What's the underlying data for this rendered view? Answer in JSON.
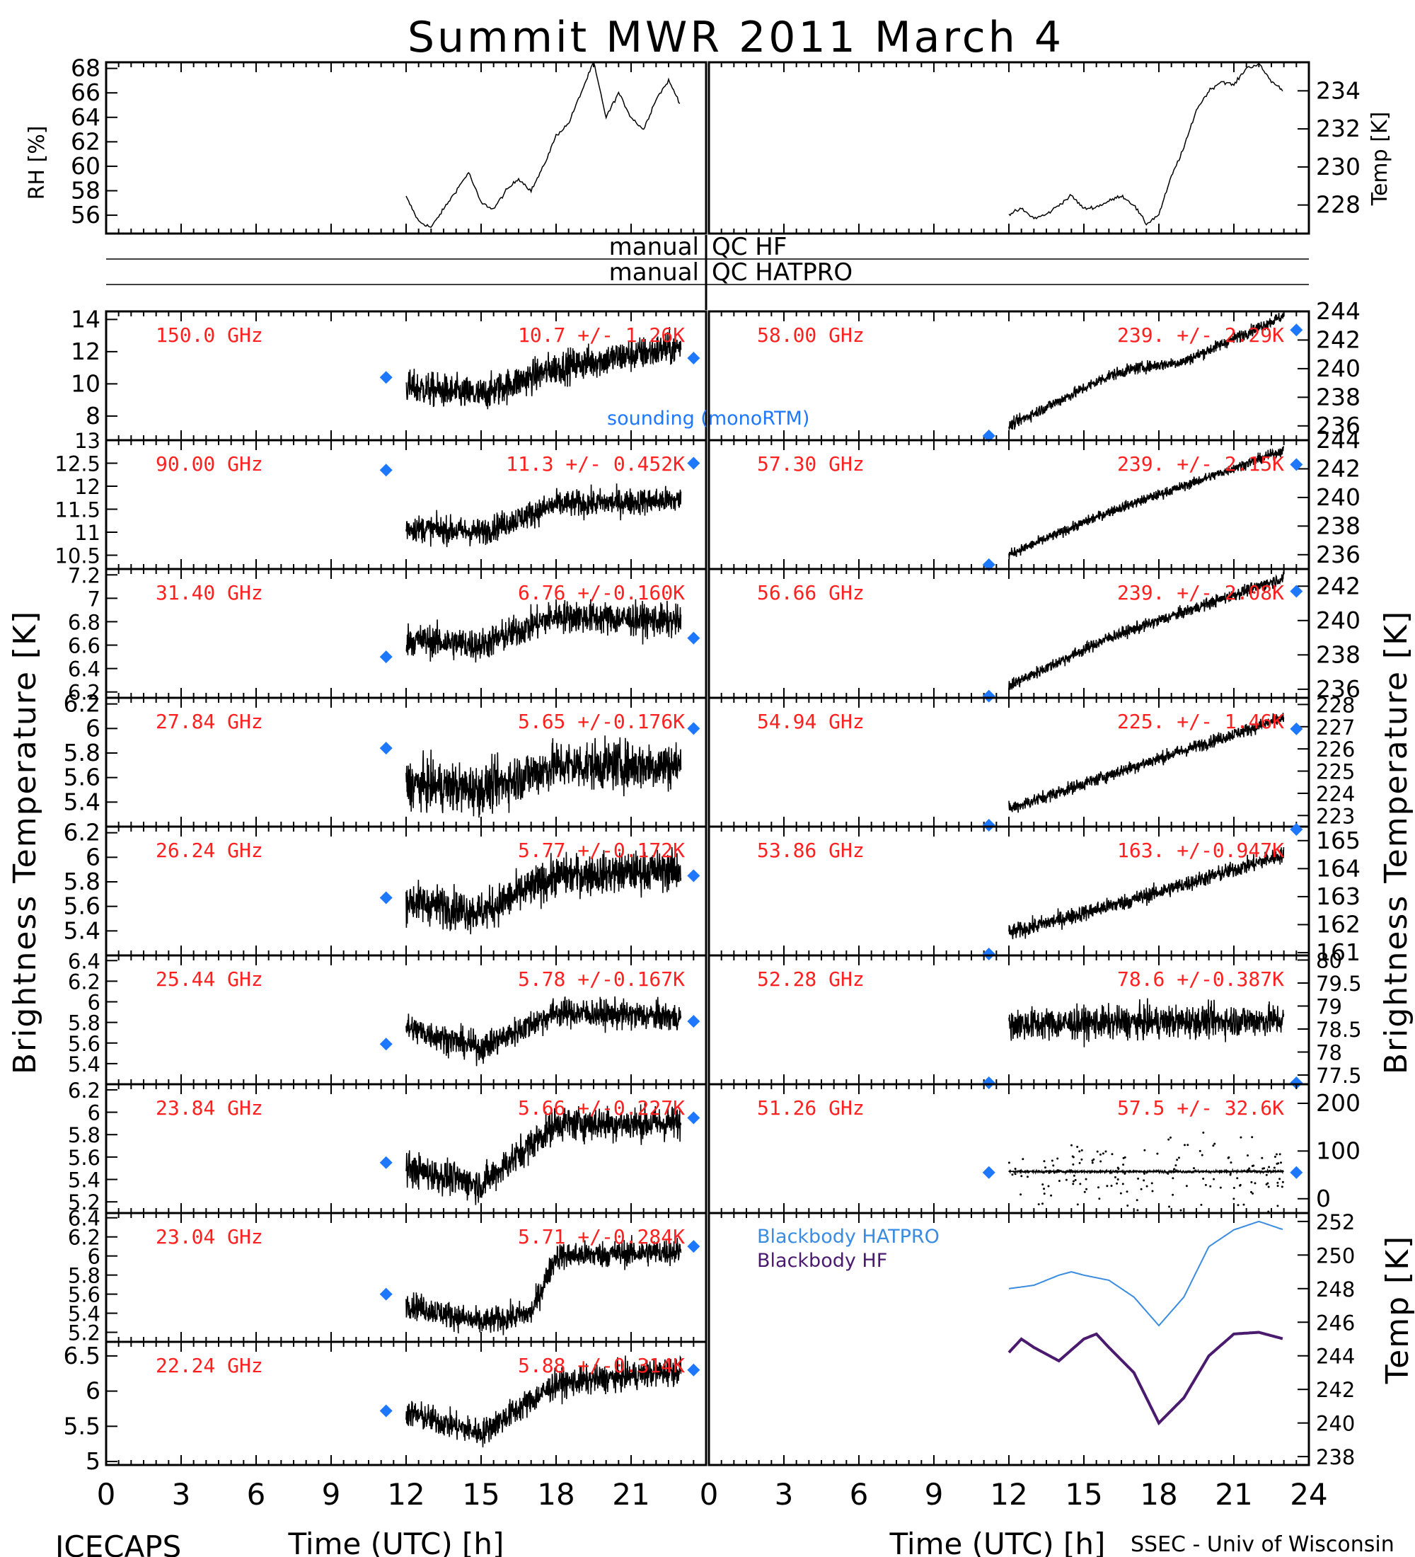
{
  "title": "Summit MWR 2011 March  4",
  "footer": {
    "left": "ICECAPS",
    "right": "SSEC - Univ of Wisconsin"
  },
  "axis": {
    "xlabel": "Time (UTC) [h]",
    "xticks": [
      0,
      3,
      6,
      9,
      12,
      15,
      18,
      21,
      24
    ],
    "xlim": [
      0,
      24
    ]
  },
  "labels": {
    "rh": "RH [%]",
    "temp_top": "Temp [K]",
    "bt_left": "Brightness Temperature [K]",
    "bt_right": "Brightness Temperature [K]",
    "temp_bottom": "Temp [K]"
  },
  "qc": {
    "left1": "manual",
    "right1": "QC HF",
    "left2": "manual",
    "right2": "QC HATPRO"
  },
  "legend": {
    "sounding": "sounding (monoRTM)",
    "bb_hatpro": "Blackbody HATPRO",
    "bb_hf": "Blackbody HF"
  },
  "colors": {
    "stats": "#ff2020",
    "sounding": "#1e78ff",
    "bb_hatpro": "#3a8ce0",
    "bb_hf": "#4a1a6e"
  },
  "chart_data": [
    {
      "type": "line",
      "panel": "rh",
      "ylabel": "RH [%]",
      "ylim": [
        54.5,
        68.5
      ],
      "yticks": [
        56,
        58,
        60,
        62,
        64,
        66,
        68
      ],
      "series": [
        {
          "x": [
            12,
            12.5,
            13,
            13.5,
            14,
            14.5,
            15,
            15.5,
            16,
            16.5,
            17,
            17.5,
            18,
            18.5,
            19,
            19.5,
            20,
            20.5,
            21,
            21.5,
            22,
            22.5,
            23
          ],
          "values": [
            57.5,
            55.5,
            55,
            56.5,
            58,
            59.5,
            57,
            56.5,
            58,
            59,
            58,
            60,
            62.5,
            63.5,
            66,
            68.5,
            64,
            66,
            64,
            63,
            65.5,
            67,
            65
          ]
        }
      ]
    },
    {
      "type": "line",
      "panel": "temp_top",
      "ylabel": "Temp [K]",
      "ylim": [
        226.5,
        235.5
      ],
      "yticks": [
        228,
        230,
        232,
        234
      ],
      "series": [
        {
          "x": [
            12,
            12.5,
            13,
            13.5,
            14,
            14.5,
            15,
            15.5,
            16,
            16.5,
            17,
            17.5,
            18,
            18.5,
            19,
            19.5,
            20,
            20.5,
            21,
            21.5,
            22,
            22.5,
            23
          ],
          "values": [
            227.5,
            227.8,
            227.3,
            227.5,
            228,
            228.5,
            227.8,
            227.9,
            228.2,
            228.5,
            228,
            227,
            227.5,
            229.5,
            231,
            233,
            234,
            234.5,
            234.3,
            235.2,
            235.4,
            234.5,
            234
          ]
        }
      ]
    },
    {
      "type": "scatter",
      "panel": "150.0 GHz",
      "freq": "150.0 GHz",
      "stats": "10.7 +/- 1.26K",
      "ylim": [
        6.5,
        14.5
      ],
      "yticks": [
        8,
        10,
        12,
        14
      ],
      "sounding": [
        {
          "x": 11.2,
          "y": 10.4
        },
        {
          "x": 23.5,
          "y": 11.6
        }
      ],
      "trend": {
        "x": [
          12,
          15,
          18,
          23
        ],
        "values": [
          9.8,
          9.3,
          11,
          12.3
        ]
      },
      "noise": 0.9
    },
    {
      "type": "scatter",
      "panel": "58.00 GHz",
      "freq": "58.00 GHz",
      "stats": "239. +/- 2.29K",
      "ylim": [
        235,
        244
      ],
      "yticks": [
        236,
        238,
        240,
        242,
        244
      ],
      "sounding": [
        {
          "x": 11.2,
          "y": 235.3
        },
        {
          "x": 23.5,
          "y": 242.7
        }
      ],
      "trend": {
        "x": [
          12,
          16,
          17,
          19,
          23
        ],
        "values": [
          236,
          239.5,
          240,
          240.5,
          243.7
        ]
      },
      "noise": 0.35
    },
    {
      "type": "scatter",
      "panel": "90.00 GHz",
      "freq": "90.00 GHz",
      "stats": "11.3 +/- 0.452K",
      "ylim": [
        10.2,
        13.0
      ],
      "yticks": [
        10.5,
        11.0,
        11.5,
        12.0,
        12.5,
        13.0
      ],
      "sounding": [
        {
          "x": 11.2,
          "y": 12.35
        },
        {
          "x": 23.5,
          "y": 12.5
        }
      ],
      "trend": {
        "x": [
          12,
          15,
          18,
          23
        ],
        "values": [
          11.1,
          11.0,
          11.6,
          11.7
        ]
      },
      "noise": 0.25
    },
    {
      "type": "scatter",
      "panel": "57.30 GHz",
      "freq": "57.30 GHz",
      "stats": "239. +/- 2.15K",
      "ylim": [
        235,
        244
      ],
      "yticks": [
        236,
        238,
        240,
        242,
        244
      ],
      "sounding": [
        {
          "x": 11.2,
          "y": 235.3
        },
        {
          "x": 23.5,
          "y": 242.3
        }
      ],
      "trend": {
        "x": [
          12,
          16,
          19,
          23
        ],
        "values": [
          236,
          239,
          240.8,
          243.3
        ]
      },
      "noise": 0.3
    },
    {
      "type": "scatter",
      "panel": "31.40 GHz",
      "freq": "31.40 GHz",
      "stats": "6.76 +/-0.160K",
      "ylim": [
        6.15,
        7.25
      ],
      "yticks": [
        6.2,
        6.4,
        6.6,
        6.8,
        7.0,
        7.2
      ],
      "sounding": [
        {
          "x": 11.2,
          "y": 6.5
        },
        {
          "x": 23.5,
          "y": 6.66
        }
      ],
      "trend": {
        "x": [
          12,
          15,
          18,
          23
        ],
        "values": [
          6.65,
          6.6,
          6.85,
          6.8
        ]
      },
      "noise": 0.12
    },
    {
      "type": "scatter",
      "panel": "56.66 GHz",
      "freq": "56.66 GHz",
      "stats": "239. +/- 2.08K",
      "ylim": [
        235.5,
        243
      ],
      "yticks": [
        236,
        238,
        240,
        242
      ],
      "sounding": [
        {
          "x": 11.2,
          "y": 235.6
        },
        {
          "x": 23.5,
          "y": 241.7
        }
      ],
      "trend": {
        "x": [
          12,
          16,
          19,
          23
        ],
        "values": [
          236.2,
          239,
          240.5,
          242.5
        ]
      },
      "noise": 0.3
    },
    {
      "type": "scatter",
      "panel": "27.84 GHz",
      "freq": "27.84 GHz",
      "stats": "5.65 +/-0.176K",
      "ylim": [
        5.2,
        6.25
      ],
      "yticks": [
        5.4,
        5.6,
        5.8,
        6.0,
        6.2
      ],
      "sounding": [
        {
          "x": 11.2,
          "y": 5.84
        },
        {
          "x": 23.5,
          "y": 6.0
        }
      ],
      "trend": {
        "x": [
          12,
          15,
          18,
          23
        ],
        "values": [
          5.55,
          5.5,
          5.7,
          5.7
        ]
      },
      "noise": 0.17
    },
    {
      "type": "scatter",
      "panel": "54.94 GHz",
      "freq": "54.94 GHz",
      "stats": "225. +/- 1.46K",
      "ylim": [
        222.5,
        228.3
      ],
      "yticks": [
        223,
        224,
        225,
        226,
        227,
        228
      ],
      "sounding": [
        {
          "x": 11.2,
          "y": 222.3
        },
        {
          "x": 23.5,
          "y": 226.9
        }
      ],
      "trend": {
        "x": [
          12,
          17,
          23
        ],
        "values": [
          223.3,
          225.2,
          227.4
        ]
      },
      "noise": 0.25
    },
    {
      "type": "scatter",
      "panel": "26.24 GHz",
      "freq": "26.24 GHz",
      "stats": "5.77 +/-0.172K",
      "ylim": [
        5.2,
        6.25
      ],
      "yticks": [
        5.4,
        5.6,
        5.8,
        6.0,
        6.2
      ],
      "sounding": [
        {
          "x": 11.2,
          "y": 5.67
        },
        {
          "x": 23.5,
          "y": 5.85
        }
      ],
      "trend": {
        "x": [
          12,
          15,
          18,
          23
        ],
        "values": [
          5.65,
          5.55,
          5.85,
          5.9
        ]
      },
      "noise": 0.14
    },
    {
      "type": "scatter",
      "panel": "53.86 GHz",
      "freq": "53.86 GHz",
      "stats": "163. +/-0.947K",
      "ylim": [
        160.9,
        165.5
      ],
      "yticks": [
        161,
        162,
        163,
        164,
        165
      ],
      "sounding": [
        {
          "x": 11.2,
          "y": 160.6
        },
        {
          "x": 23.5,
          "y": 165.4
        }
      ],
      "trend": {
        "x": [
          12,
          17,
          23
        ],
        "values": [
          161.7,
          162.9,
          164.5
        ]
      },
      "noise": 0.25
    },
    {
      "type": "scatter",
      "panel": "25.44 GHz",
      "freq": "25.44 GHz",
      "stats": "5.78 +/-0.167K",
      "ylim": [
        5.2,
        6.45
      ],
      "yticks": [
        5.4,
        5.6,
        5.8,
        6.0,
        6.2,
        6.4
      ],
      "sounding": [
        {
          "x": 11.2,
          "y": 5.59
        },
        {
          "x": 23.5,
          "y": 5.81
        }
      ],
      "trend": {
        "x": [
          12,
          15,
          18,
          23
        ],
        "values": [
          5.75,
          5.55,
          5.9,
          5.85
        ]
      },
      "noise": 0.12
    },
    {
      "type": "scatter",
      "panel": "52.28 GHz",
      "freq": "52.28 GHz",
      "stats": "78.6 +/-0.387K",
      "ylim": [
        77.3,
        80.1
      ],
      "yticks": [
        77.5,
        78.0,
        78.5,
        79.0,
        79.5,
        80.0
      ],
      "sounding": [
        {
          "x": 11.2,
          "y": 77.0
        },
        {
          "x": 23.5,
          "y": 77.0
        }
      ],
      "trend": {
        "x": [
          12,
          23
        ],
        "values": [
          78.6,
          78.7
        ]
      },
      "noise": 0.3
    },
    {
      "type": "scatter",
      "panel": "23.84 GHz",
      "freq": "23.84 GHz",
      "stats": "5.66 +/-0.227K",
      "ylim": [
        5.1,
        6.25
      ],
      "yticks": [
        5.2,
        5.4,
        5.6,
        5.8,
        6.0,
        6.2
      ],
      "sounding": [
        {
          "x": 11.2,
          "y": 5.55
        },
        {
          "x": 23.5,
          "y": 5.95
        }
      ],
      "trend": {
        "x": [
          12,
          15,
          18,
          23
        ],
        "values": [
          5.5,
          5.35,
          5.9,
          5.9
        ]
      },
      "noise": 0.13
    },
    {
      "type": "scatter",
      "panel": "51.26 GHz",
      "freq": "51.26 GHz",
      "stats": "57.5 +/- 32.6K",
      "ylim": [
        -30,
        240
      ],
      "yticks": [
        0,
        100,
        200
      ],
      "sounding": [
        {
          "x": 11.2,
          "y": 55
        },
        {
          "x": 23.5,
          "y": 55
        }
      ],
      "trend": {
        "x": [
          12,
          23
        ],
        "values": [
          57,
          57
        ]
      },
      "noise": 2
    },
    {
      "type": "scatter",
      "panel": "23.04 GHz",
      "freq": "23.04 GHz",
      "stats": "5.71 +/-0.284K",
      "ylim": [
        5.1,
        6.45
      ],
      "yticks": [
        5.2,
        5.4,
        5.6,
        5.8,
        6.0,
        6.2,
        6.4
      ],
      "sounding": [
        {
          "x": 11.2,
          "y": 5.6
        },
        {
          "x": 23.5,
          "y": 6.1
        }
      ],
      "trend": {
        "x": [
          12,
          15,
          17,
          18,
          23
        ],
        "values": [
          5.5,
          5.3,
          5.4,
          6.0,
          6.05
        ]
      },
      "noise": 0.12
    },
    {
      "type": "line",
      "panel": "blackbody",
      "ylabel": "Temp [K]",
      "ylim": [
        237.5,
        252.5
      ],
      "yticks": [
        238,
        240,
        242,
        244,
        246,
        248,
        250,
        252
      ],
      "series": [
        {
          "name": "Blackbody HATPRO",
          "x": [
            12,
            13,
            14,
            14.5,
            15,
            16,
            17,
            18,
            19,
            20,
            21,
            22,
            23
          ],
          "values": [
            248,
            248.2,
            248.8,
            249,
            248.8,
            248.5,
            247.5,
            245.8,
            247.5,
            250.5,
            251.5,
            252,
            251.5
          ]
        },
        {
          "name": "Blackbody HF",
          "x": [
            12,
            12.5,
            13,
            14,
            15,
            15.5,
            16,
            17,
            18,
            19,
            20,
            21,
            22,
            23
          ],
          "values": [
            244.2,
            245,
            244.5,
            243.7,
            245,
            245.3,
            244.5,
            243,
            240,
            241.5,
            244,
            245.3,
            245.4,
            245
          ]
        }
      ]
    },
    {
      "type": "scatter",
      "panel": "22.24 GHz",
      "freq": "22.24 GHz",
      "stats": "5.88 +/-0.314K",
      "ylim": [
        4.95,
        6.7
      ],
      "yticks": [
        5.0,
        5.5,
        6.0,
        6.5
      ],
      "sounding": [
        {
          "x": 11.2,
          "y": 5.72
        },
        {
          "x": 23.5,
          "y": 6.3
        }
      ],
      "trend": {
        "x": [
          12,
          15,
          18,
          23
        ],
        "values": [
          5.7,
          5.4,
          6.1,
          6.3
        ]
      },
      "noise": 0.17
    }
  ]
}
